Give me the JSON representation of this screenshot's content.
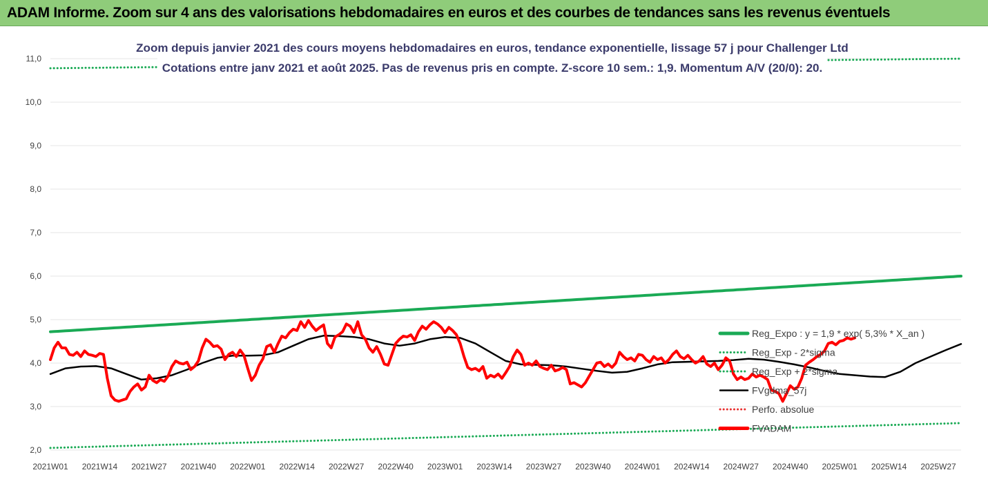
{
  "header": {
    "banner_title": "ADAM Informe. Zoom sur 4 ans des valorisations hebdomadaires en euros et des courbes de tendances sans les revenus éventuels"
  },
  "colors": {
    "banner_bg": "#8fcc7a",
    "reg_green": "#1aaa55",
    "price_red": "#ff0000",
    "fv_black": "#000000",
    "perf_red_dotted": "#e83030"
  },
  "chart_data": {
    "type": "line",
    "title": "Zoom depuis janvier 2021 des cours moyens hebdomadaires en euros, tendance exponentielle, lissage 57 j pour Challenger Ltd",
    "subtitle": "Cotations entre janv 2021 et août 2025. Pas de revenus pris en compte. Z-score 10 sem.: 1,9. Momentum A/V (20/0): 20.",
    "xlabel": "",
    "ylabel": "",
    "ylim": [
      2.0,
      11.0
    ],
    "yticks": [
      "2,0",
      "3,0",
      "4,0",
      "5,0",
      "6,0",
      "7,0",
      "8,0",
      "9,0",
      "10,0",
      "11,0"
    ],
    "x_count": 241,
    "xticks": [
      {
        "i": 0,
        "label": "2021W01"
      },
      {
        "i": 13,
        "label": "2021W14"
      },
      {
        "i": 26,
        "label": "2021W27"
      },
      {
        "i": 39,
        "label": "2021W40"
      },
      {
        "i": 52,
        "label": "2022W01"
      },
      {
        "i": 65,
        "label": "2022W14"
      },
      {
        "i": 78,
        "label": "2022W27"
      },
      {
        "i": 91,
        "label": "2022W40"
      },
      {
        "i": 104,
        "label": "2023W01"
      },
      {
        "i": 117,
        "label": "2023W14"
      },
      {
        "i": 130,
        "label": "2023W27"
      },
      {
        "i": 143,
        "label": "2023W40"
      },
      {
        "i": 156,
        "label": "2024W01"
      },
      {
        "i": 169,
        "label": "2024W14"
      },
      {
        "i": 182,
        "label": "2024W27"
      },
      {
        "i": 195,
        "label": "2024W40"
      },
      {
        "i": 208,
        "label": "2025W01"
      },
      {
        "i": 221,
        "label": "2025W14"
      },
      {
        "i": 234,
        "label": "2025W27"
      }
    ],
    "legend": {
      "position": "right"
    },
    "series": [
      {
        "name": "Reg_Expo : y = 1,9 * exp( 5,3% *  X_an )",
        "style": "solid-thick",
        "color": "#1aaa55",
        "points": [
          [
            0,
            4.72
          ],
          [
            240,
            6.0
          ]
        ]
      },
      {
        "name": "Reg_Exp - 2*sigma",
        "style": "dotted",
        "color": "#1aaa55",
        "points": [
          [
            0,
            2.05
          ],
          [
            240,
            2.62
          ]
        ]
      },
      {
        "name": "Reg_Exp + 2*sigma",
        "style": "dotted",
        "color": "#1aaa55",
        "points": [
          [
            0,
            10.78
          ],
          [
            240,
            11.0
          ]
        ]
      },
      {
        "name": "FVgdma_57j",
        "style": "solid",
        "color": "#000000",
        "points": [
          [
            0,
            3.75
          ],
          [
            4,
            3.88
          ],
          [
            8,
            3.92
          ],
          [
            12,
            3.93
          ],
          [
            16,
            3.88
          ],
          [
            20,
            3.75
          ],
          [
            24,
            3.62
          ],
          [
            28,
            3.65
          ],
          [
            32,
            3.72
          ],
          [
            36,
            3.85
          ],
          [
            40,
            4.0
          ],
          [
            44,
            4.12
          ],
          [
            48,
            4.17
          ],
          [
            52,
            4.17
          ],
          [
            56,
            4.18
          ],
          [
            60,
            4.25
          ],
          [
            64,
            4.4
          ],
          [
            68,
            4.55
          ],
          [
            72,
            4.63
          ],
          [
            76,
            4.62
          ],
          [
            80,
            4.6
          ],
          [
            84,
            4.55
          ],
          [
            88,
            4.45
          ],
          [
            92,
            4.4
          ],
          [
            96,
            4.45
          ],
          [
            100,
            4.55
          ],
          [
            104,
            4.6
          ],
          [
            108,
            4.58
          ],
          [
            112,
            4.45
          ],
          [
            116,
            4.25
          ],
          [
            120,
            4.05
          ],
          [
            124,
            3.97
          ],
          [
            128,
            3.96
          ],
          [
            132,
            3.95
          ],
          [
            136,
            3.92
          ],
          [
            140,
            3.87
          ],
          [
            144,
            3.82
          ],
          [
            148,
            3.78
          ],
          [
            152,
            3.8
          ],
          [
            156,
            3.88
          ],
          [
            160,
            3.97
          ],
          [
            164,
            4.02
          ],
          [
            168,
            4.03
          ],
          [
            172,
            4.04
          ],
          [
            176,
            4.05
          ],
          [
            180,
            4.07
          ],
          [
            184,
            4.1
          ],
          [
            188,
            4.08
          ],
          [
            192,
            4.03
          ],
          [
            196,
            3.97
          ],
          [
            200,
            3.9
          ],
          [
            204,
            3.82
          ],
          [
            208,
            3.75
          ],
          [
            212,
            3.72
          ],
          [
            216,
            3.69
          ],
          [
            220,
            3.68
          ],
          [
            224,
            3.8
          ],
          [
            228,
            4.0
          ],
          [
            232,
            4.15
          ],
          [
            236,
            4.3
          ],
          [
            240,
            4.44
          ]
        ]
      },
      {
        "name": "Perfo. absolue",
        "style": "dotted",
        "color": "#e83030",
        "points": []
      },
      {
        "name": "FVADAM",
        "style": "solid-thick",
        "color": "#ff0000",
        "points": [
          [
            0,
            4.08
          ],
          [
            1,
            4.35
          ],
          [
            2,
            4.48
          ],
          [
            3,
            4.35
          ],
          [
            4,
            4.35
          ],
          [
            5,
            4.2
          ],
          [
            6,
            4.18
          ],
          [
            7,
            4.25
          ],
          [
            8,
            4.15
          ],
          [
            9,
            4.28
          ],
          [
            10,
            4.2
          ],
          [
            11,
            4.18
          ],
          [
            12,
            4.15
          ],
          [
            13,
            4.22
          ],
          [
            14,
            4.2
          ],
          [
            15,
            3.65
          ],
          [
            16,
            3.25
          ],
          [
            17,
            3.15
          ],
          [
            18,
            3.12
          ],
          [
            19,
            3.15
          ],
          [
            20,
            3.18
          ],
          [
            21,
            3.35
          ],
          [
            22,
            3.45
          ],
          [
            23,
            3.52
          ],
          [
            24,
            3.38
          ],
          [
            25,
            3.45
          ],
          [
            26,
            3.72
          ],
          [
            27,
            3.6
          ],
          [
            28,
            3.55
          ],
          [
            29,
            3.62
          ],
          [
            30,
            3.58
          ],
          [
            31,
            3.7
          ],
          [
            32,
            3.92
          ],
          [
            33,
            4.05
          ],
          [
            34,
            4.0
          ],
          [
            35,
            3.98
          ],
          [
            36,
            4.02
          ],
          [
            37,
            3.85
          ],
          [
            38,
            3.92
          ],
          [
            39,
            4.05
          ],
          [
            40,
            4.35
          ],
          [
            41,
            4.55
          ],
          [
            42,
            4.48
          ],
          [
            43,
            4.38
          ],
          [
            44,
            4.4
          ],
          [
            45,
            4.32
          ],
          [
            46,
            4.08
          ],
          [
            47,
            4.2
          ],
          [
            48,
            4.25
          ],
          [
            49,
            4.15
          ],
          [
            50,
            4.3
          ],
          [
            51,
            4.18
          ],
          [
            52,
            3.88
          ],
          [
            53,
            3.6
          ],
          [
            54,
            3.72
          ],
          [
            55,
            3.95
          ],
          [
            56,
            4.1
          ],
          [
            57,
            4.38
          ],
          [
            58,
            4.42
          ],
          [
            59,
            4.25
          ],
          [
            60,
            4.45
          ],
          [
            61,
            4.62
          ],
          [
            62,
            4.58
          ],
          [
            63,
            4.7
          ],
          [
            64,
            4.78
          ],
          [
            65,
            4.75
          ],
          [
            66,
            4.95
          ],
          [
            67,
            4.82
          ],
          [
            68,
            4.98
          ],
          [
            69,
            4.85
          ],
          [
            70,
            4.75
          ],
          [
            71,
            4.82
          ],
          [
            72,
            4.88
          ],
          [
            73,
            4.45
          ],
          [
            74,
            4.35
          ],
          [
            75,
            4.6
          ],
          [
            76,
            4.65
          ],
          [
            77,
            4.72
          ],
          [
            78,
            4.9
          ],
          [
            79,
            4.85
          ],
          [
            80,
            4.7
          ],
          [
            81,
            4.95
          ],
          [
            82,
            4.65
          ],
          [
            83,
            4.55
          ],
          [
            84,
            4.35
          ],
          [
            85,
            4.25
          ],
          [
            86,
            4.38
          ],
          [
            87,
            4.2
          ],
          [
            88,
            3.98
          ],
          [
            89,
            3.95
          ],
          [
            90,
            4.2
          ],
          [
            91,
            4.45
          ],
          [
            92,
            4.55
          ],
          [
            93,
            4.62
          ],
          [
            94,
            4.6
          ],
          [
            95,
            4.65
          ],
          [
            96,
            4.52
          ],
          [
            97,
            4.72
          ],
          [
            98,
            4.85
          ],
          [
            99,
            4.78
          ],
          [
            100,
            4.88
          ],
          [
            101,
            4.95
          ],
          [
            102,
            4.9
          ],
          [
            103,
            4.82
          ],
          [
            104,
            4.7
          ],
          [
            105,
            4.82
          ],
          [
            106,
            4.75
          ],
          [
            107,
            4.65
          ],
          [
            108,
            4.45
          ],
          [
            109,
            4.15
          ],
          [
            110,
            3.9
          ],
          [
            111,
            3.85
          ],
          [
            112,
            3.88
          ],
          [
            113,
            3.82
          ],
          [
            114,
            3.92
          ],
          [
            115,
            3.65
          ],
          [
            116,
            3.72
          ],
          [
            117,
            3.68
          ],
          [
            118,
            3.75
          ],
          [
            119,
            3.65
          ],
          [
            120,
            3.78
          ],
          [
            121,
            3.92
          ],
          [
            122,
            4.15
          ],
          [
            123,
            4.3
          ],
          [
            124,
            4.2
          ],
          [
            125,
            3.95
          ],
          [
            126,
            4.0
          ],
          [
            127,
            3.95
          ],
          [
            128,
            4.05
          ],
          [
            129,
            3.92
          ],
          [
            130,
            3.88
          ],
          [
            131,
            3.85
          ],
          [
            132,
            3.95
          ],
          [
            133,
            3.82
          ],
          [
            134,
            3.85
          ],
          [
            135,
            3.9
          ],
          [
            136,
            3.85
          ],
          [
            137,
            3.52
          ],
          [
            138,
            3.55
          ],
          [
            139,
            3.5
          ],
          [
            140,
            3.45
          ],
          [
            141,
            3.55
          ],
          [
            142,
            3.7
          ],
          [
            143,
            3.85
          ],
          [
            144,
            4.0
          ],
          [
            145,
            4.02
          ],
          [
            146,
            3.92
          ],
          [
            147,
            3.98
          ],
          [
            148,
            3.9
          ],
          [
            149,
            4.0
          ],
          [
            150,
            4.25
          ],
          [
            151,
            4.15
          ],
          [
            152,
            4.08
          ],
          [
            153,
            4.12
          ],
          [
            154,
            4.05
          ],
          [
            155,
            4.2
          ],
          [
            156,
            4.18
          ],
          [
            157,
            4.08
          ],
          [
            158,
            4.02
          ],
          [
            159,
            4.15
          ],
          [
            160,
            4.08
          ],
          [
            161,
            4.12
          ],
          [
            162,
            4.0
          ],
          [
            163,
            4.08
          ],
          [
            164,
            4.2
          ],
          [
            165,
            4.28
          ],
          [
            166,
            4.15
          ],
          [
            167,
            4.1
          ],
          [
            168,
            4.18
          ],
          [
            169,
            4.08
          ],
          [
            170,
            4.0
          ],
          [
            171,
            4.05
          ],
          [
            172,
            4.15
          ],
          [
            173,
            3.98
          ],
          [
            174,
            3.92
          ],
          [
            175,
            4.0
          ],
          [
            176,
            3.85
          ],
          [
            177,
            3.95
          ],
          [
            178,
            4.12
          ],
          [
            179,
            4.05
          ],
          [
            180,
            3.75
          ],
          [
            181,
            3.62
          ],
          [
            182,
            3.68
          ],
          [
            183,
            3.62
          ],
          [
            184,
            3.65
          ],
          [
            185,
            3.75
          ],
          [
            186,
            3.68
          ],
          [
            187,
            3.72
          ],
          [
            188,
            3.68
          ],
          [
            189,
            3.62
          ],
          [
            190,
            3.38
          ],
          [
            191,
            3.35
          ],
          [
            192,
            3.3
          ],
          [
            193,
            3.12
          ],
          [
            194,
            3.3
          ],
          [
            195,
            3.48
          ],
          [
            196,
            3.4
          ],
          [
            197,
            3.45
          ],
          [
            198,
            3.65
          ],
          [
            199,
            3.95
          ],
          [
            200,
            4.02
          ],
          [
            201,
            4.08
          ],
          [
            202,
            4.15
          ],
          [
            203,
            4.2
          ],
          [
            204,
            4.28
          ],
          [
            205,
            4.45
          ],
          [
            206,
            4.48
          ],
          [
            207,
            4.42
          ],
          [
            208,
            4.5
          ],
          [
            209,
            4.52
          ],
          [
            210,
            4.58
          ],
          [
            211,
            4.55
          ],
          [
            212,
            4.58
          ]
        ]
      }
    ]
  }
}
